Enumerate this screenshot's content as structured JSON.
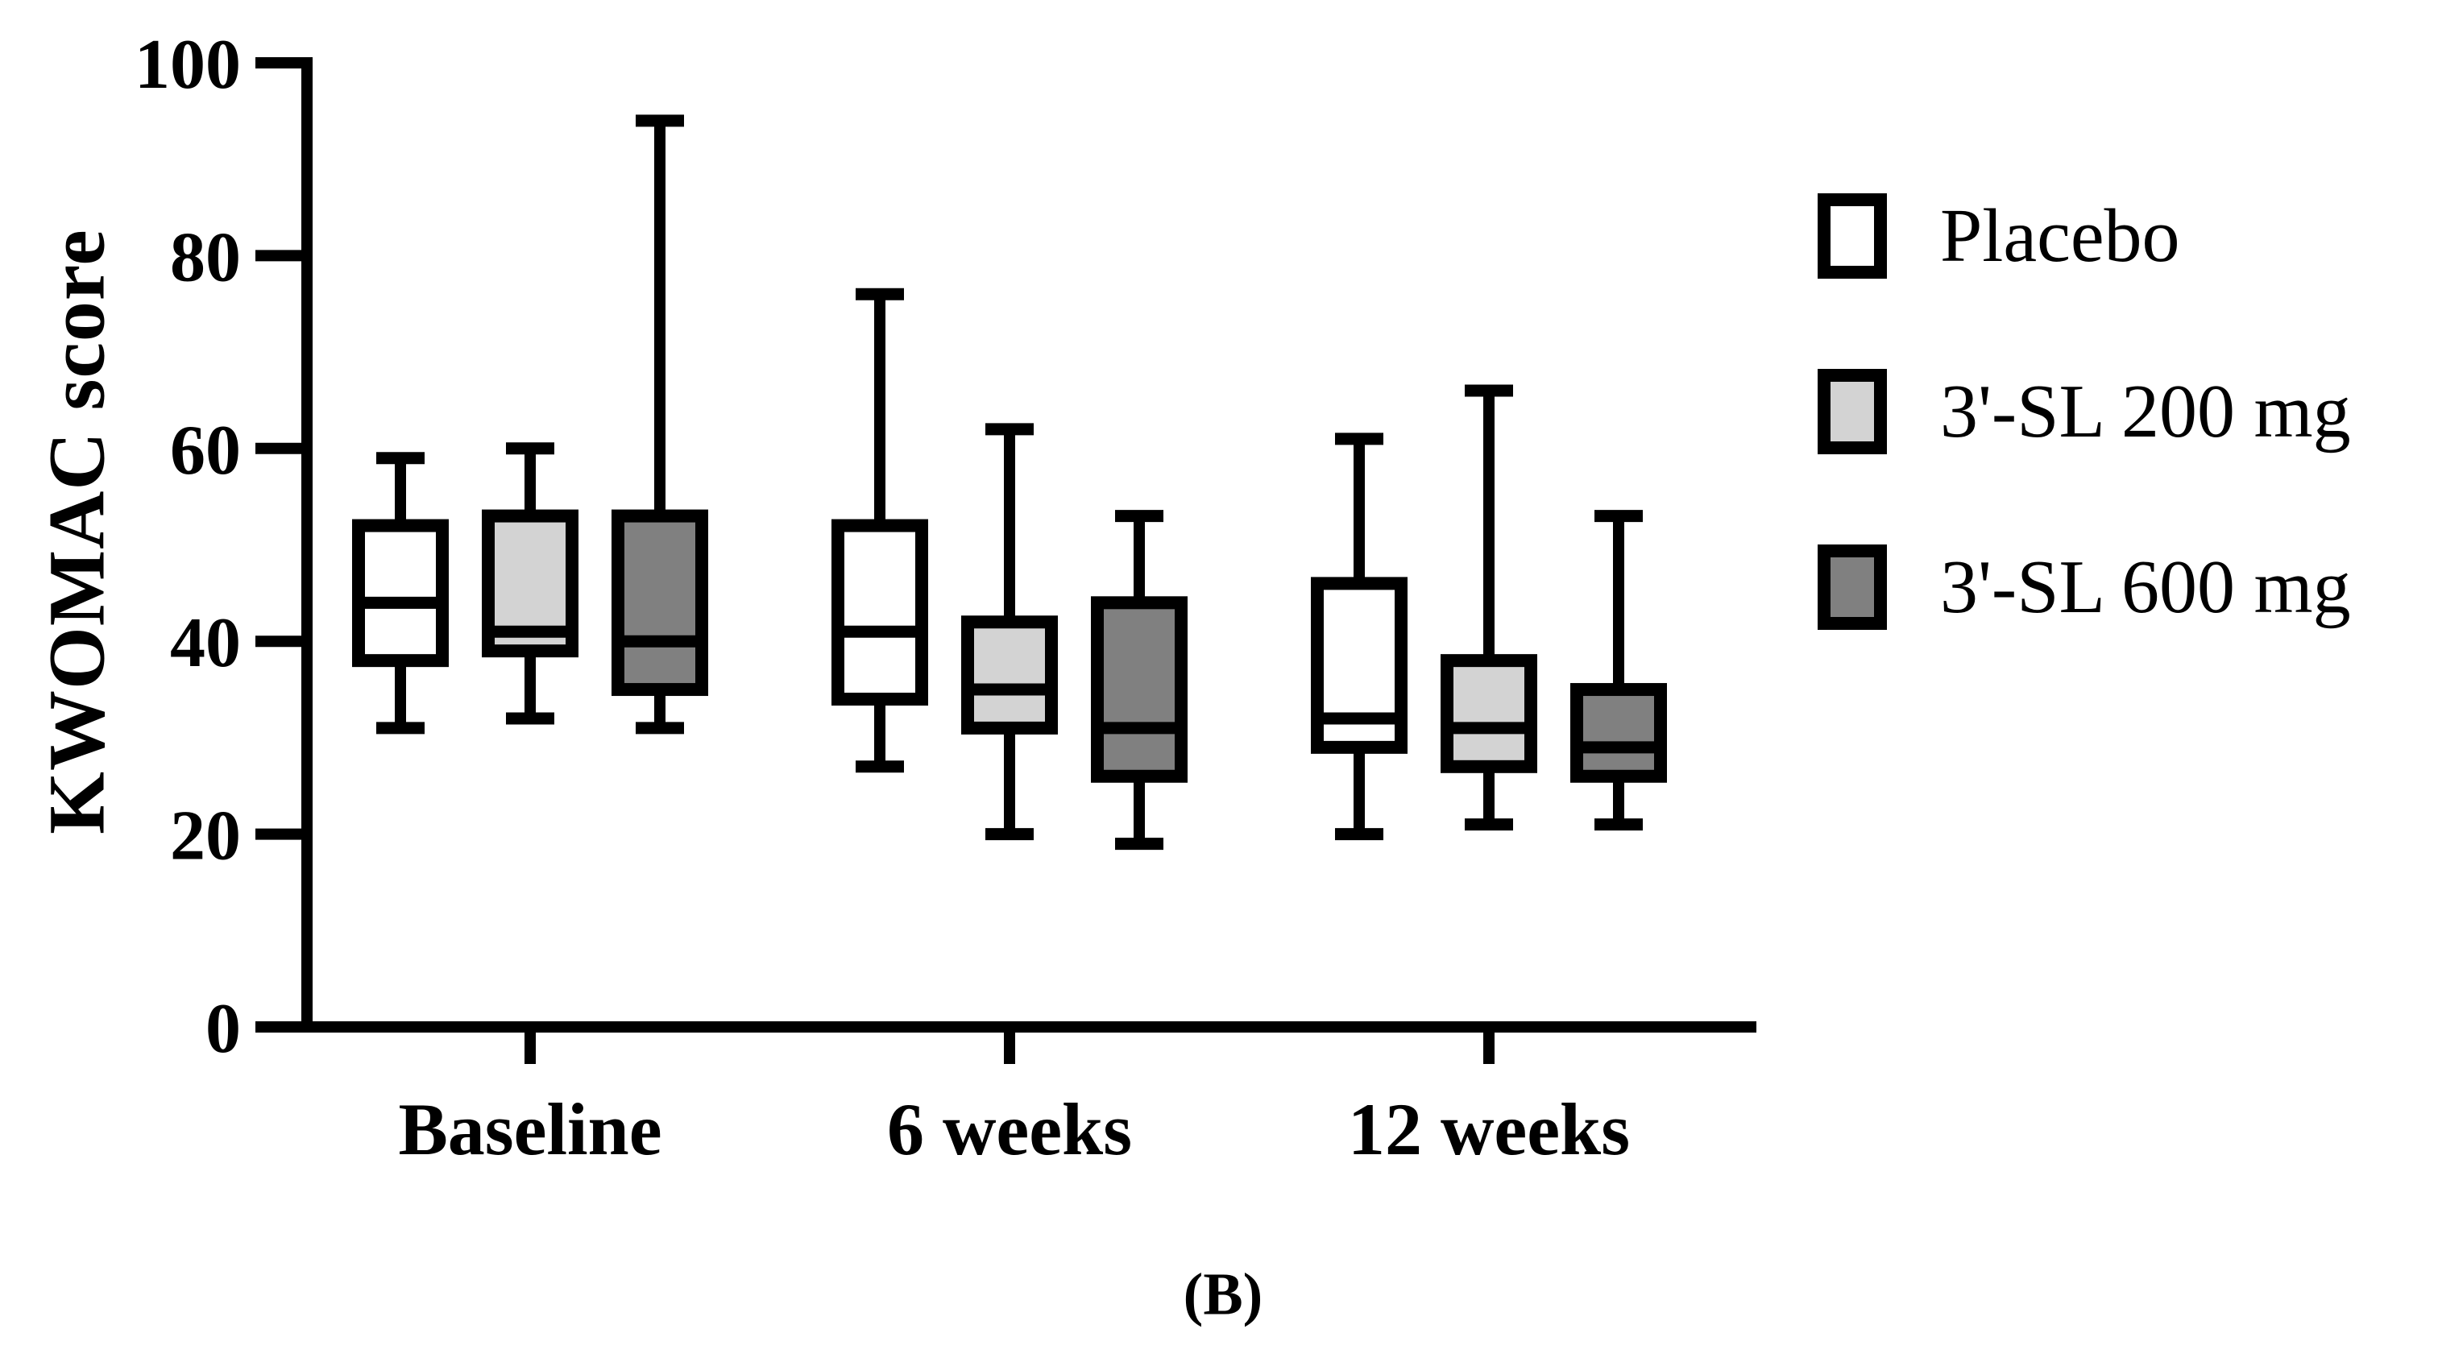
{
  "figure": {
    "panel_label": "(B)",
    "background": "#ffffff",
    "axis_color": "#000000"
  },
  "chart_data": {
    "type": "boxplot",
    "title": "",
    "xlabel": "",
    "ylabel": "KWOMAC score",
    "ylim": [
      0,
      100
    ],
    "yticks": [
      0,
      20,
      40,
      60,
      80,
      100
    ],
    "ytick_labels": [
      "0",
      "20",
      "40",
      "60",
      "80",
      "100"
    ],
    "grid": "off",
    "legend_position": "right",
    "categories": [
      "Baseline",
      "6 weeks",
      "12 weeks"
    ],
    "series": [
      {
        "name": "Placebo",
        "fill": "#ffffff",
        "boxes": [
          {
            "category": "Baseline",
            "min": 31,
            "q1": 38,
            "median": 44,
            "q3": 52,
            "max": 59
          },
          {
            "category": "6 weeks",
            "min": 27,
            "q1": 34,
            "median": 41,
            "q3": 52,
            "max": 76
          },
          {
            "category": "12 weeks",
            "min": 20,
            "q1": 29,
            "median": 32,
            "q3": 46,
            "max": 61
          }
        ]
      },
      {
        "name": "3'-SL 200 mg",
        "fill": "#d3d3d3",
        "boxes": [
          {
            "category": "Baseline",
            "min": 32,
            "q1": 39,
            "median": 41,
            "q3": 53,
            "max": 60
          },
          {
            "category": "6 weeks",
            "min": 20,
            "q1": 31,
            "median": 35,
            "q3": 42,
            "max": 62
          },
          {
            "category": "12 weeks",
            "min": 21,
            "q1": 27,
            "median": 31,
            "q3": 38,
            "max": 66
          }
        ]
      },
      {
        "name": "3'-SL 600 mg",
        "fill": "#808080",
        "boxes": [
          {
            "category": "Baseline",
            "min": 31,
            "q1": 35,
            "median": 40,
            "q3": 53,
            "max": 94
          },
          {
            "category": "6 weeks",
            "min": 19,
            "q1": 26,
            "median": 31,
            "q3": 44,
            "max": 53
          },
          {
            "category": "12 weeks",
            "min": 21,
            "q1": 26,
            "median": 29,
            "q3": 35,
            "max": 53
          }
        ]
      }
    ]
  }
}
